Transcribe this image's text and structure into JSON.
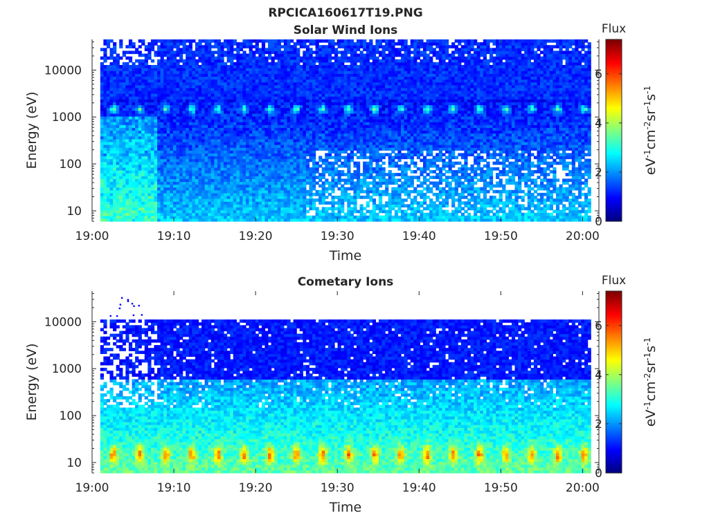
{
  "figure": {
    "title": "RPCICA160617T19.PNG"
  },
  "chart_data": [
    {
      "type": "heatmap",
      "title": "Solar Wind Ions",
      "xlabel": "Time",
      "ylabel": "Energy (eV)",
      "xticks": [
        "19:00",
        "19:10",
        "19:20",
        "19:30",
        "19:40",
        "19:50",
        "20:00"
      ],
      "xlim": [
        "19:00",
        "20:02"
      ],
      "yscale": "log",
      "yticks": [
        "10",
        "100",
        "1000",
        "10000"
      ],
      "ylim": [
        6,
        45000
      ],
      "colorbar": {
        "label": "Flux",
        "unit_text": "eV-1cm-2sr-1s-1",
        "ticks": [
          "0",
          "2",
          "4",
          "6"
        ],
        "range": [
          0,
          7.4
        ],
        "colormap": "jet"
      },
      "features": {
        "data_start": "19:01",
        "data_end": "20:01",
        "peak_energy_band_eV": 1500,
        "peak_pulse_period_min": 3.2,
        "blank_line_energy_eV": 200
      }
    },
    {
      "type": "heatmap",
      "title": "Cometary Ions",
      "xlabel": "Time",
      "ylabel": "Energy (eV)",
      "xticks": [
        "19:00",
        "19:10",
        "19:20",
        "19:30",
        "19:40",
        "19:50",
        "20:00"
      ],
      "xlim": [
        "19:00",
        "20:02"
      ],
      "yscale": "log",
      "yticks": [
        "10",
        "100",
        "1000",
        "10000"
      ],
      "ylim": [
        6,
        45000
      ],
      "colorbar": {
        "label": "Flux",
        "unit_text": "eV-1cm-2sr-1s-1",
        "ticks": [
          "0",
          "2",
          "4",
          "6"
        ],
        "range": [
          0,
          7.4
        ],
        "colormap": "jet"
      },
      "features": {
        "data_start": "19:01",
        "data_end": "20:01",
        "max_energy_eV": 11000,
        "peak_energy_band_eV": 15,
        "peak_pulse_period_min": 3.2
      }
    }
  ]
}
